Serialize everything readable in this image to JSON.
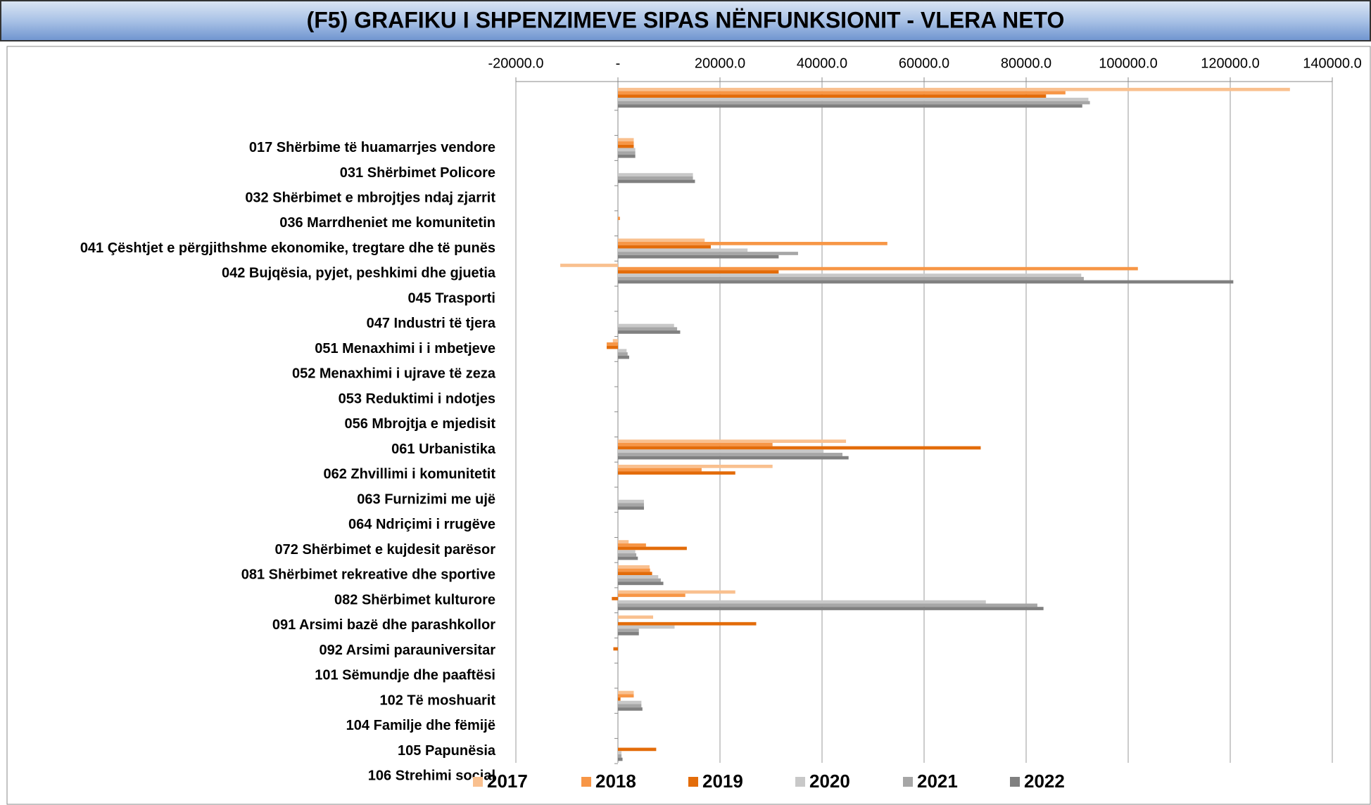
{
  "chart_data": {
    "type": "hbar",
    "title": "(F5) GRAFIKU I SHPENZIMEVE SIPAS NËNFUNKSIONIT - VLERA NETO",
    "categories": [
      null,
      "017 Shërbime të  huamarrjes vendore",
      "031 Shërbimet Policore",
      "032 Shërbimet e mbrojtjes ndaj zjarrit",
      "036 Marrdheniet me komunitetin",
      "041 Çështjet e përgjithshme ekonomike, tregtare dhe të punës",
      "042 Bujqësia, pyjet, peshkimi dhe gjuetia",
      "045 Trasporti",
      "047 Industri të tjera",
      "051 Menaxhimi i i mbetjeve",
      "052 Menaxhimi i ujrave të zeza",
      "053 Reduktimi i ndotjes",
      "056 Mbrojtja e mjedisit",
      "061 Urbanistika",
      "062 Zhvillimi i komunitetit",
      "063 Furnizimi me ujë",
      "064 Ndriçimi i rrugëve",
      "072 Shërbimet e kujdesit parësor ",
      "081 Shërbimet rekreative dhe sportive",
      "082 Shërbimet kulturore",
      "091 Arsimi bazë dhe parashkollor",
      "092 Arsimi  parauniversitar",
      "101 Sëmundje dhe paaftësi",
      "102 Të moshuarit",
      "104 Familje dhe fëmijë",
      "105 Papunësia",
      "106 Strehimi social"
    ],
    "series": [
      {
        "name": "2017",
        "color": "#f9c08f",
        "values": [
          131700,
          0,
          3100,
          0,
          0,
          0,
          17000,
          -11300,
          0,
          0,
          -1000,
          0,
          0,
          0,
          44700,
          30300,
          0,
          0,
          2100,
          6200,
          23000,
          6900,
          0,
          0,
          3100,
          0,
          0
        ]
      },
      {
        "name": "2018",
        "color": "#f79646",
        "values": [
          87700,
          0,
          3100,
          0,
          0,
          400,
          52800,
          101900,
          0,
          0,
          -2200,
          0,
          0,
          0,
          30300,
          16400,
          0,
          0,
          5500,
          6300,
          13200,
          0,
          0,
          0,
          3100,
          0,
          0
        ]
      },
      {
        "name": "2019",
        "color": "#e36c0a",
        "values": [
          83900,
          0,
          3100,
          0,
          0,
          0,
          18200,
          31500,
          0,
          0,
          -2200,
          0,
          0,
          0,
          71100,
          23000,
          0,
          0,
          13500,
          6700,
          -1200,
          27100,
          -900,
          0,
          500,
          0,
          7500
        ]
      },
      {
        "name": "2020",
        "color": "#c8c8c8",
        "values": [
          92200,
          0,
          3400,
          14700,
          0,
          0,
          25400,
          90800,
          0,
          11000,
          1700,
          0,
          0,
          0,
          40300,
          0,
          5100,
          0,
          3400,
          7900,
          72100,
          11100,
          0,
          0,
          4600,
          0,
          700
        ]
      },
      {
        "name": "2021",
        "color": "#a6a6a6",
        "values": [
          92500,
          0,
          3400,
          14700,
          0,
          0,
          35300,
          91300,
          0,
          11600,
          1900,
          0,
          0,
          0,
          44000,
          0,
          5100,
          0,
          3600,
          8400,
          82200,
          4100,
          0,
          0,
          4600,
          0,
          700
        ]
      },
      {
        "name": "2022",
        "color": "#808080",
        "values": [
          91000,
          0,
          3400,
          15100,
          0,
          0,
          31500,
          120600,
          0,
          12200,
          2200,
          0,
          0,
          0,
          45200,
          0,
          5100,
          0,
          3900,
          8900,
          83400,
          4100,
          0,
          0,
          4800,
          0,
          900
        ]
      }
    ],
    "xlim": [
      -20000,
      140000
    ],
    "xticks": [
      {
        "value": -20000,
        "label": "-20000.0"
      },
      {
        "value": 0,
        "label": "-"
      },
      {
        "value": 20000,
        "label": "20000.0"
      },
      {
        "value": 40000,
        "label": "40000.0"
      },
      {
        "value": 60000,
        "label": "60000.0"
      },
      {
        "value": 80000,
        "label": "80000.0"
      },
      {
        "value": 100000,
        "label": "100000.0"
      },
      {
        "value": 120000,
        "label": "120000.0"
      },
      {
        "value": 140000,
        "label": "140000.0"
      }
    ],
    "grid": true,
    "legend": "bottom"
  }
}
